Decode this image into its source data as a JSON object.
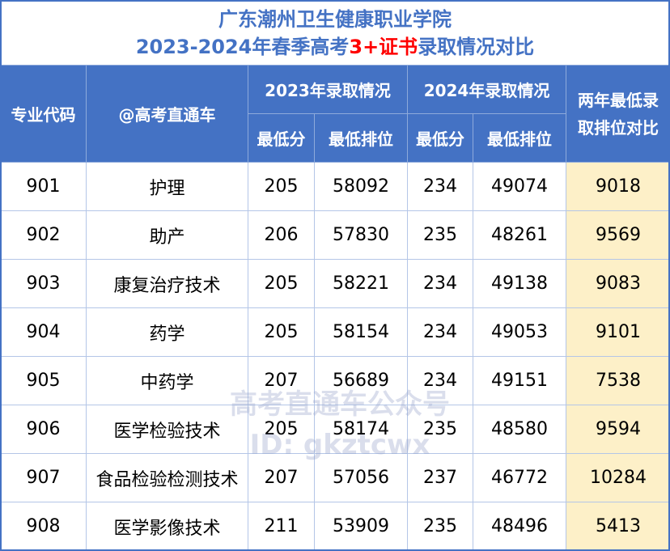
{
  "title": {
    "line1": "广东潮州卫生健康职业学院",
    "line2_pre": "2023-2024年春季高考",
    "line2_red": "3+证书",
    "line2_post": "录取情况对比"
  },
  "headers": {
    "code": "专业代码",
    "name": "@高考直通车",
    "y2023": "2023年录取情况",
    "y2024": "2024年录取情况",
    "min_score": "最低分",
    "min_rank": "最低排位",
    "diff": "两年最低录取排位对比"
  },
  "rows": [
    {
      "code": "901",
      "name": "护理",
      "s23": "205",
      "r23": "58092",
      "s24": "234",
      "r24": "49074",
      "diff": "9018"
    },
    {
      "code": "902",
      "name": "助产",
      "s23": "206",
      "r23": "57830",
      "s24": "235",
      "r24": "48261",
      "diff": "9569"
    },
    {
      "code": "903",
      "name": "康复治疗技术",
      "s23": "205",
      "r23": "58221",
      "s24": "234",
      "r24": "49138",
      "diff": "9083"
    },
    {
      "code": "904",
      "name": "药学",
      "s23": "205",
      "r23": "58154",
      "s24": "234",
      "r24": "49053",
      "diff": "9101"
    },
    {
      "code": "905",
      "name": "中药学",
      "s23": "207",
      "r23": "56689",
      "s24": "234",
      "r24": "49151",
      "diff": "7538"
    },
    {
      "code": "906",
      "name": "医学检验技术",
      "s23": "205",
      "r23": "58174",
      "s24": "235",
      "r24": "48580",
      "diff": "9594"
    },
    {
      "code": "907",
      "name": "食品检验检测技术",
      "s23": "207",
      "r23": "57056",
      "s24": "237",
      "r24": "46772",
      "diff": "10284"
    },
    {
      "code": "908",
      "name": "医学影像技术",
      "s23": "211",
      "r23": "53909",
      "s24": "235",
      "r24": "48496",
      "diff": "5413"
    }
  ],
  "watermark": {
    "line1": "高考直通车公众号",
    "line2": "ID: gkztcwx"
  }
}
